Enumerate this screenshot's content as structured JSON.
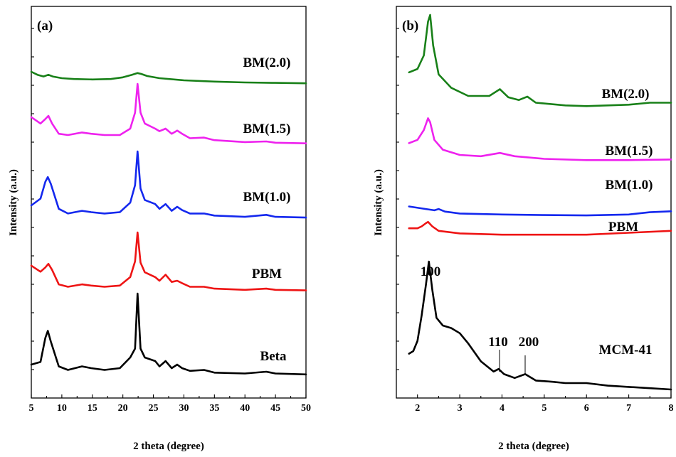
{
  "chart_data": [
    {
      "panel_label": "(a)",
      "type": "line",
      "xlabel": "2 theta (degree)",
      "ylabel": "Intensity (a.u.)",
      "xlim": [
        5,
        50
      ],
      "xticks": [
        "5",
        "10",
        "15",
        "20",
        "25",
        "30",
        "35",
        "40",
        "45",
        "50"
      ],
      "yticks_labeled": false,
      "offset_stacked": true,
      "series": [
        {
          "name": "BM(2.0)",
          "color": "#188018",
          "x": [
            5,
            6,
            7,
            7.8,
            8.5,
            10,
            12,
            15,
            18,
            20,
            21.5,
            22.4,
            23,
            24,
            26,
            30,
            35,
            40,
            45,
            50
          ],
          "y": [
            0.35,
            0.28,
            0.24,
            0.28,
            0.24,
            0.2,
            0.18,
            0.17,
            0.18,
            0.22,
            0.28,
            0.32,
            0.3,
            0.25,
            0.2,
            0.15,
            0.12,
            0.1,
            0.09,
            0.08
          ]
        },
        {
          "name": "BM(1.5)",
          "color": "#ee22ee",
          "x": [
            5,
            6.5,
            7.3,
            7.8,
            8.4,
            9.5,
            11,
            13.3,
            14.8,
            17,
            19.5,
            21.2,
            22.0,
            22.4,
            22.9,
            23.6,
            25.3,
            26,
            27.0,
            28,
            28.9,
            29.7,
            31,
            33.3,
            35,
            40,
            43.5,
            45,
            50
          ],
          "y": [
            0.48,
            0.38,
            0.45,
            0.5,
            0.38,
            0.22,
            0.2,
            0.24,
            0.22,
            0.2,
            0.2,
            0.3,
            0.55,
            1.0,
            0.55,
            0.38,
            0.3,
            0.26,
            0.3,
            0.22,
            0.27,
            0.22,
            0.15,
            0.16,
            0.12,
            0.09,
            0.1,
            0.08,
            0.07
          ]
        },
        {
          "name": "BM(1.0)",
          "color": "#1428ee",
          "x": [
            5,
            6.5,
            7.3,
            7.7,
            8.2,
            9.5,
            11,
            13.3,
            14.8,
            17,
            19.5,
            21.2,
            22.0,
            22.4,
            22.9,
            23.6,
            25.3,
            26,
            27.0,
            28,
            28.9,
            29.7,
            31,
            33.3,
            35,
            40,
            43.5,
            45,
            50
          ],
          "y": [
            0.2,
            0.3,
            0.55,
            0.62,
            0.52,
            0.15,
            0.08,
            0.12,
            0.1,
            0.08,
            0.1,
            0.24,
            0.5,
            1.0,
            0.45,
            0.28,
            0.22,
            0.15,
            0.22,
            0.12,
            0.18,
            0.13,
            0.08,
            0.08,
            0.05,
            0.03,
            0.06,
            0.03,
            0.02
          ]
        },
        {
          "name": "PBM",
          "color": "#ee1414",
          "x": [
            5,
            6.5,
            7.3,
            7.8,
            8.4,
            9.5,
            11,
            13.3,
            14.8,
            17,
            19.5,
            21.2,
            22.0,
            22.4,
            22.9,
            23.6,
            25.3,
            26,
            27.0,
            28,
            28.9,
            29.7,
            31,
            33.3,
            35,
            40,
            43.5,
            45,
            50
          ],
          "y": [
            0.45,
            0.35,
            0.42,
            0.48,
            0.38,
            0.14,
            0.1,
            0.14,
            0.12,
            0.1,
            0.12,
            0.26,
            0.52,
            1.0,
            0.5,
            0.34,
            0.26,
            0.2,
            0.3,
            0.18,
            0.2,
            0.16,
            0.1,
            0.1,
            0.07,
            0.05,
            0.07,
            0.05,
            0.04
          ]
        },
        {
          "name": "Beta",
          "color": "#000000",
          "x": [
            5,
            6.5,
            7.3,
            7.7,
            8.2,
            9.5,
            11,
            13.3,
            14.8,
            17,
            19.5,
            21.2,
            22.0,
            22.4,
            22.9,
            23.6,
            25.3,
            26,
            27.0,
            28,
            28.9,
            29.7,
            31,
            33.3,
            35,
            40,
            43.5,
            45,
            50
          ],
          "y": [
            0.12,
            0.15,
            0.42,
            0.5,
            0.38,
            0.1,
            0.06,
            0.1,
            0.08,
            0.06,
            0.08,
            0.2,
            0.3,
            0.92,
            0.3,
            0.2,
            0.16,
            0.1,
            0.16,
            0.08,
            0.12,
            0.08,
            0.05,
            0.06,
            0.03,
            0.02,
            0.04,
            0.02,
            0.01
          ]
        }
      ]
    },
    {
      "panel_label": "(b)",
      "type": "line",
      "xlabel": "2 theta (degree)",
      "ylabel": "Intensity (a.u.)",
      "xlim": [
        1.5,
        8
      ],
      "xticks": [
        "2",
        "3",
        "4",
        "5",
        "6",
        "7",
        "8"
      ],
      "yticks_labeled": false,
      "offset_stacked": true,
      "series": [
        {
          "name": "BM(2.0)",
          "color": "#188018",
          "x": [
            1.8,
            2.0,
            2.15,
            2.25,
            2.3,
            2.37,
            2.5,
            2.8,
            3.2,
            3.7,
            3.95,
            4.15,
            4.4,
            4.6,
            4.8,
            5.5,
            6,
            7,
            7.5,
            8
          ],
          "y": [
            0.55,
            0.6,
            0.8,
            1.3,
            1.4,
            0.95,
            0.52,
            0.32,
            0.2,
            0.2,
            0.3,
            0.18,
            0.14,
            0.19,
            0.1,
            0.06,
            0.05,
            0.07,
            0.1,
            0.1
          ]
        },
        {
          "name": "BM(1.5)",
          "color": "#ee22ee",
          "x": [
            1.8,
            2.0,
            2.15,
            2.25,
            2.3,
            2.4,
            2.6,
            3.0,
            3.5,
            3.95,
            4.3,
            5.0,
            6,
            7,
            8
          ],
          "y": [
            0.3,
            0.35,
            0.5,
            0.68,
            0.62,
            0.35,
            0.2,
            0.12,
            0.1,
            0.15,
            0.1,
            0.06,
            0.04,
            0.04,
            0.05
          ]
        },
        {
          "name": "BM(1.0)",
          "color": "#1428ee",
          "x": [
            1.8,
            2.2,
            2.4,
            2.5,
            2.65,
            3.0,
            4,
            5,
            6,
            7,
            7.5,
            8
          ],
          "y": [
            0.3,
            0.22,
            0.18,
            0.22,
            0.14,
            0.08,
            0.05,
            0.03,
            0.02,
            0.05,
            0.12,
            0.15
          ]
        },
        {
          "name": "PBM",
          "color": "#ee1414",
          "x": [
            1.8,
            2.0,
            2.1,
            2.2,
            2.25,
            2.35,
            2.5,
            3.0,
            4,
            5,
            6,
            7,
            8
          ],
          "y": [
            0.12,
            0.12,
            0.15,
            0.2,
            0.22,
            0.15,
            0.08,
            0.04,
            0.02,
            0.02,
            0.02,
            0.05,
            0.08
          ]
        },
        {
          "name": "MCM-41",
          "color": "#000000",
          "x": [
            1.8,
            1.9,
            2.0,
            2.1,
            2.2,
            2.27,
            2.35,
            2.45,
            2.6,
            2.8,
            3.0,
            3.2,
            3.5,
            3.8,
            3.92,
            4.05,
            4.3,
            4.55,
            4.8,
            5.2,
            5.5,
            6.0,
            6.5,
            7,
            7.5,
            8
          ],
          "y": [
            0.28,
            0.3,
            0.38,
            0.58,
            0.82,
            1.0,
            0.78,
            0.56,
            0.5,
            0.48,
            0.44,
            0.36,
            0.22,
            0.14,
            0.16,
            0.12,
            0.09,
            0.12,
            0.07,
            0.06,
            0.05,
            0.05,
            0.03,
            0.02,
            0.01,
            0.0
          ]
        }
      ]
    }
  ],
  "peak_labels": [
    "100",
    "110",
    "200"
  ]
}
